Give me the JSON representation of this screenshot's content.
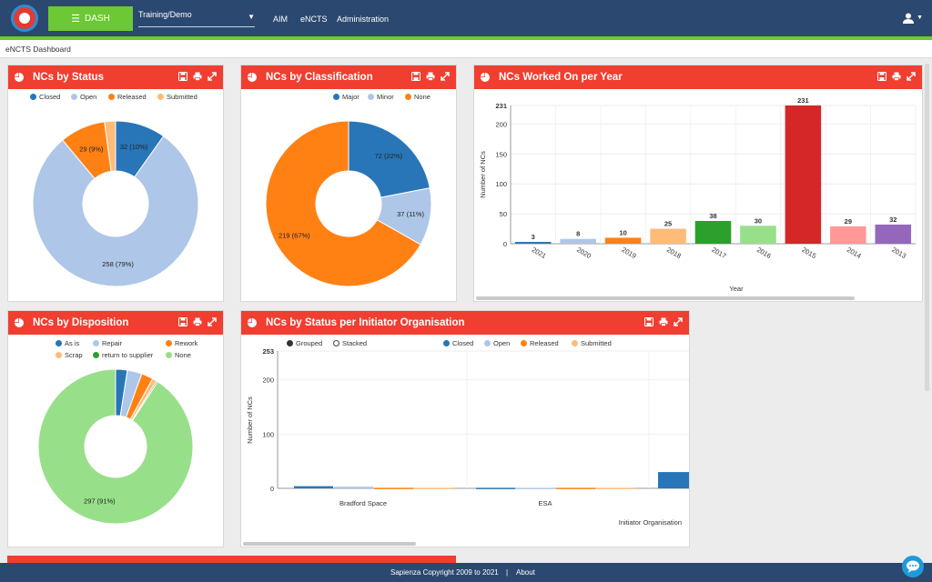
{
  "topbar": {
    "dash_label": "DASH",
    "workspace_value": "Training/Demo",
    "nav": [
      "AIM",
      "eNCTS",
      "Administration"
    ]
  },
  "breadcrumb": "eNCTS Dashboard",
  "colors": {
    "header": "#2b4870",
    "accent_green": "#6bcb2f",
    "panel_red": "#f03e31"
  },
  "panels": {
    "status": {
      "title": "NCs by Status",
      "legend": [
        {
          "label": "Closed",
          "color": "#2876b8"
        },
        {
          "label": "Open",
          "color": "#aec7e8"
        },
        {
          "label": "Released",
          "color": "#ff8114"
        },
        {
          "label": "Submitted",
          "color": "#ffbb78"
        }
      ]
    },
    "classification": {
      "title": "NCs by Classification",
      "legend": [
        {
          "label": "Major",
          "color": "#2876b8"
        },
        {
          "label": "Minor",
          "color": "#aec7e8"
        },
        {
          "label": "None",
          "color": "#ff8114"
        }
      ]
    },
    "per_year": {
      "title": "NCs Worked On per Year",
      "ylabel": "Number of NCs",
      "xlabel": "Year"
    },
    "disposition": {
      "title": "NCs by Disposition",
      "legend": [
        {
          "label": "As is",
          "color": "#2876b8"
        },
        {
          "label": "Repair",
          "color": "#aec7e8"
        },
        {
          "label": "Rework",
          "color": "#ff8114"
        },
        {
          "label": "Scrap",
          "color": "#ffbb78"
        },
        {
          "label": "return to supplier",
          "color": "#2ca02c"
        },
        {
          "label": "None",
          "color": "#98df8a"
        }
      ]
    },
    "initiator": {
      "title": "NCs by Status per Initiator Organisation",
      "mode_grouped": "Grouped",
      "mode_stacked": "Stacked",
      "legend": [
        {
          "label": "Closed",
          "color": "#2876b8"
        },
        {
          "label": "Open",
          "color": "#aec7e8"
        },
        {
          "label": "Released",
          "color": "#ff8114"
        },
        {
          "label": "Submitted",
          "color": "#ffbb78"
        }
      ],
      "ylabel": "Number of NCs",
      "xlabel": "Initiator Organisation"
    }
  },
  "chart_data": [
    {
      "type": "pie",
      "categories": [
        "Closed",
        "Open",
        "Released",
        "Submitted"
      ],
      "values": [
        32,
        258,
        29,
        7
      ],
      "labels": [
        "32 (10%)",
        "258 (79%)",
        "29 (9%)",
        ""
      ],
      "colors": [
        "#2876b8",
        "#aec7e8",
        "#ff8114",
        "#ffbb78"
      ]
    },
    {
      "type": "pie",
      "categories": [
        "Major",
        "Minor",
        "None"
      ],
      "values": [
        72,
        37,
        219
      ],
      "labels": [
        "72 (22%)",
        "37 (11%)",
        "219 (67%)"
      ],
      "colors": [
        "#2876b8",
        "#aec7e8",
        "#ff8114"
      ]
    },
    {
      "type": "bar",
      "categories": [
        "2021",
        "2020",
        "2019",
        "2018",
        "2017",
        "2016",
        "2015",
        "2014",
        "2013"
      ],
      "values": [
        3,
        8,
        10,
        25,
        38,
        30,
        231,
        29,
        32
      ],
      "colors": [
        "#2876b8",
        "#aec7e8",
        "#ff8114",
        "#ffbb78",
        "#2ca02c",
        "#98df8a",
        "#d62728",
        "#ff9896",
        "#9467bd"
      ],
      "ylabel": "Number of NCs",
      "xlabel": "Year",
      "yticks": [
        "0",
        "50",
        "100",
        "150",
        "200",
        "231"
      ],
      "ylim": [
        0,
        231
      ]
    },
    {
      "type": "pie",
      "categories": [
        "As is",
        "Repair",
        "Rework",
        "Scrap",
        "return to supplier",
        "None"
      ],
      "values": [
        8,
        10,
        8,
        3,
        1,
        297
      ],
      "labels": [
        "",
        "",
        "",
        "",
        "",
        "297 (91%)"
      ],
      "colors": [
        "#2876b8",
        "#aec7e8",
        "#ff8114",
        "#ffbb78",
        "#2ca02c",
        "#98df8a"
      ]
    },
    {
      "type": "bar",
      "categories": [
        "Bradford Space",
        "ESA",
        ""
      ],
      "series": [
        {
          "name": "Closed",
          "values": [
            4,
            1,
            30
          ]
        },
        {
          "name": "Open",
          "values": [
            3,
            1,
            0
          ]
        },
        {
          "name": "Released",
          "values": [
            1,
            1,
            0
          ]
        },
        {
          "name": "Submitted",
          "values": [
            1,
            1,
            0
          ]
        }
      ],
      "ylabel": "Number of NCs",
      "xlabel": "Initiator Organisation",
      "yticks": [
        "0",
        "100",
        "200",
        "253"
      ],
      "ylim": [
        0,
        253
      ]
    }
  ],
  "footer": {
    "copyright": "Sapienza Copyright 2009 to 2021",
    "separator": "|",
    "about": "About"
  }
}
